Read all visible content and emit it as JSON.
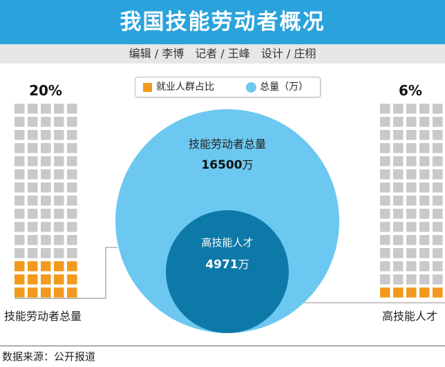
{
  "title": "我国技能劳动者概况",
  "credits": "编辑 / 李博　记者 / 王峰　设计 / 庄栩",
  "legend": {
    "share_label": "就业人群占比",
    "total_label": "总量（万）"
  },
  "colors": {
    "header": "#2aa3dc",
    "share": "#f39a1e",
    "empty_cell": "#c9c9c9",
    "outer_circle": "#6cc8f0",
    "inner_circle": "#0d79a8"
  },
  "chart_data": {
    "type": "waffle-bubble",
    "waffles": [
      {
        "name": "技能劳动者总量",
        "percent_label": "20%",
        "percent": 20,
        "rows": 15,
        "cols": 5
      },
      {
        "name": "高技能人才",
        "percent_label": "6%",
        "percent": 6,
        "rows": 15,
        "cols": 5
      }
    ],
    "bubbles": [
      {
        "name": "技能劳动者总量",
        "value": 16500,
        "value_label": "16500",
        "unit": "万"
      },
      {
        "name": "高技能人才",
        "value": 4971,
        "value_label": "4971",
        "unit": "万"
      }
    ]
  },
  "source": "数据来源：公开报道"
}
